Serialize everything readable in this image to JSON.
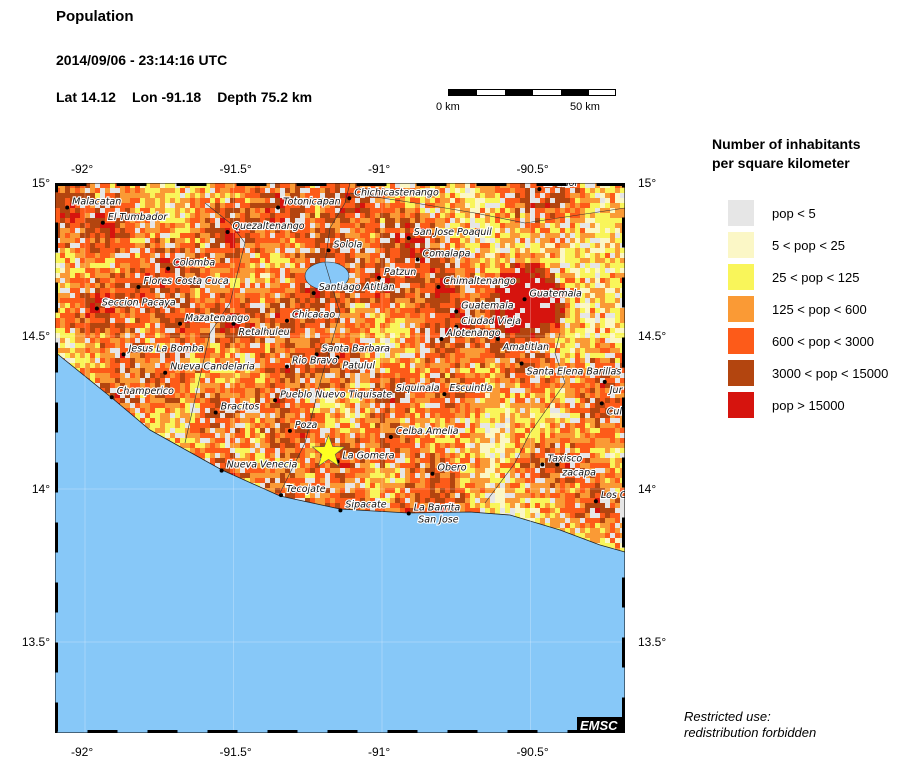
{
  "header": {
    "title": "Population",
    "datetime": "2014/09/06 - 23:14:16 UTC",
    "lat": "Lat 14.12",
    "lon": "Lon -91.18",
    "depth": "Depth  75.2 km"
  },
  "scale_bar": {
    "start_label": "0 km",
    "end_label": "50 km"
  },
  "map": {
    "lon_range": [
      -92.1,
      -90.19
    ],
    "lat_range": [
      13.2,
      15.0
    ],
    "lon_ticks": [
      {
        "v": -92,
        "label": "-92°"
      },
      {
        "v": -91.5,
        "label": "-91.5°"
      },
      {
        "v": -91,
        "label": "-91°"
      },
      {
        "v": -90.5,
        "label": "-90.5°"
      }
    ],
    "lat_ticks": [
      {
        "v": 15,
        "label": "15°"
      },
      {
        "v": 14.5,
        "label": "14.5°"
      },
      {
        "v": 14,
        "label": "14°"
      },
      {
        "v": 13.5,
        "label": "13.5°"
      }
    ],
    "ocean_color": "#87c8f8",
    "epicenter": {
      "lon": -91.18,
      "lat": 14.12,
      "color": "#ffff20"
    },
    "watermark": "EMSC",
    "cities": [
      {
        "name": "Malacatan",
        "lon": -92.06,
        "lat": 14.92
      },
      {
        "name": "El Tumbador",
        "lon": -91.94,
        "lat": 14.87
      },
      {
        "name": "Quezaltenango",
        "lon": -91.52,
        "lat": 14.84
      },
      {
        "name": "Totonicapan",
        "lon": -91.35,
        "lat": 14.92
      },
      {
        "name": "Chichicastenango",
        "lon": -91.11,
        "lat": 14.95
      },
      {
        "name": "El Chol",
        "lon": -90.47,
        "lat": 14.98
      },
      {
        "name": "Solola",
        "lon": -91.18,
        "lat": 14.78
      },
      {
        "name": "San Jose Poaquil",
        "lon": -90.91,
        "lat": 14.82
      },
      {
        "name": "Comalapa",
        "lon": -90.88,
        "lat": 14.75
      },
      {
        "name": "Patzun",
        "lon": -91.01,
        "lat": 14.69
      },
      {
        "name": "Chimaltenango",
        "lon": -90.81,
        "lat": 14.66
      },
      {
        "name": "Guatemala",
        "lon": -90.52,
        "lat": 14.62
      },
      {
        "name": "Santiago Atitlan",
        "lon": -91.23,
        "lat": 14.64
      },
      {
        "name": "Colomba",
        "lon": -91.72,
        "lat": 14.72
      },
      {
        "name": "Flores Costa Cuca",
        "lon": -91.82,
        "lat": 14.66
      },
      {
        "name": "Seccion Pacaya",
        "lon": -91.96,
        "lat": 14.59
      },
      {
        "name": "Mazatenango",
        "lon": -91.68,
        "lat": 14.54
      },
      {
        "name": "Retalhuleu",
        "lon": -91.5,
        "lat": 14.54
      },
      {
        "name": "Chicacao",
        "lon": -91.32,
        "lat": 14.55
      },
      {
        "name": "Guatemala",
        "lon": -90.75,
        "lat": 14.58
      },
      {
        "name": "Ciudad Vieja",
        "lon": -90.75,
        "lat": 14.53
      },
      {
        "name": "Alotenango",
        "lon": -90.8,
        "lat": 14.49
      },
      {
        "name": "Amatitlan",
        "lon": -90.61,
        "lat": 14.49
      },
      {
        "name": "Santa Elena Barillas",
        "lon": -90.53,
        "lat": 14.41
      },
      {
        "name": "Santa Barbara",
        "lon": -91.22,
        "lat": 14.44
      },
      {
        "name": "Patulul",
        "lon": -91.15,
        "lat": 14.43
      },
      {
        "name": "Rio Bravo",
        "lon": -91.32,
        "lat": 14.4
      },
      {
        "name": "Jesus La Bomba",
        "lon": -91.87,
        "lat": 14.44
      },
      {
        "name": "Nueva Candelaria",
        "lon": -91.73,
        "lat": 14.38
      },
      {
        "name": "Champerico",
        "lon": -91.91,
        "lat": 14.3
      },
      {
        "name": "Bracitos",
        "lon": -91.56,
        "lat": 14.25
      },
      {
        "name": "Pueblo Nuevo Tiquisate",
        "lon": -91.36,
        "lat": 14.29
      },
      {
        "name": "Siquinala",
        "lon": -90.97,
        "lat": 14.31
      },
      {
        "name": "Escuintla",
        "lon": -90.79,
        "lat": 14.31
      },
      {
        "name": "Poza",
        "lon": -91.31,
        "lat": 14.19
      },
      {
        "name": "Celba Amelia",
        "lon": -90.97,
        "lat": 14.17
      },
      {
        "name": "La Gomera",
        "lon": -91.15,
        "lat": 14.09
      },
      {
        "name": "Obero",
        "lon": -90.83,
        "lat": 14.05
      },
      {
        "name": "Nueva Venecia",
        "lon": -91.54,
        "lat": 14.06
      },
      {
        "name": "Tecojate",
        "lon": -91.34,
        "lat": 13.98
      },
      {
        "name": "Sipacate",
        "lon": -91.14,
        "lat": 13.93
      },
      {
        "name": "La Barrita",
        "lon": -90.91,
        "lat": 13.92
      },
      {
        "name": "San Jose",
        "lon": -90.81,
        "lat": 13.94
      },
      {
        "name": "Taxisco",
        "lon": -90.46,
        "lat": 14.08
      },
      {
        "name": "zacapa",
        "lon": -90.41,
        "lat": 14.08
      },
      {
        "name": "Los C",
        "lon": -90.28,
        "lat": 13.96
      },
      {
        "name": "Jur",
        "lon": -90.25,
        "lat": 14.35
      },
      {
        "name": "Culla",
        "lon": -90.26,
        "lat": 14.28
      }
    ]
  },
  "legend": {
    "title_line1": "Number of inhabitants",
    "title_line2": "per square kilometer",
    "items": [
      {
        "label": "pop < 5",
        "color": "#e6e6e6"
      },
      {
        "label": "5 < pop < 25",
        "color": "#fbf7c6"
      },
      {
        "label": "25 < pop < 125",
        "color": "#f9f55a"
      },
      {
        "label": "125 < pop < 600",
        "color": "#fa9a35"
      },
      {
        "label": "600 < pop < 3000",
        "color": "#fd5b19"
      },
      {
        "label": "3000 < pop < 15000",
        "color": "#b3450f"
      },
      {
        "label": "pop > 15000",
        "color": "#d6140e"
      }
    ]
  },
  "note": {
    "line1": "Restricted use:",
    "line2": "redistribution forbidden"
  }
}
